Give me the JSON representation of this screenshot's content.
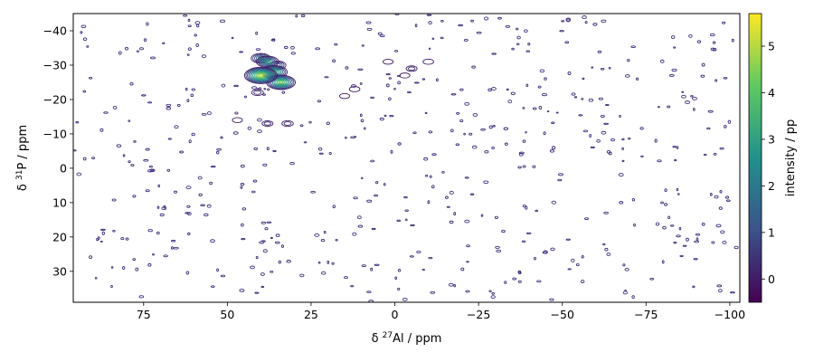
{
  "chart_data": {
    "type": "heatmap",
    "subtype": "2D NMR contour plot",
    "title": "",
    "xlabel": {
      "prefix": "δ ",
      "sup": "27",
      "suffix": "Al / ppm"
    },
    "ylabel": {
      "prefix": "δ ",
      "sup": "31",
      "suffix": "P / ppm"
    },
    "colorbar_label": "intensity / pp",
    "colormap": "viridis",
    "colormap_stops": [
      "#440154",
      "#3b528b",
      "#21918c",
      "#5ec962",
      "#fde725"
    ],
    "contour_color_low": "#3f2a7a",
    "xlim": [
      96,
      -103
    ],
    "ylim": [
      39,
      -45
    ],
    "xaxis_reversed": true,
    "yaxis_reversed": true,
    "xticks": [
      75,
      50,
      25,
      0,
      -25,
      -50,
      -75,
      -100
    ],
    "yticks": [
      -40,
      -30,
      -20,
      -10,
      0,
      10,
      20,
      30
    ],
    "colorbar_range": [
      -0.5,
      5.7
    ],
    "colorbar_ticks": [
      0,
      1,
      2,
      3,
      4,
      5
    ],
    "grid": false,
    "peaks": [
      {
        "x": 40,
        "y": -27,
        "intensity": 5.4
      },
      {
        "x": 36,
        "y": -28,
        "intensity": 4.0
      },
      {
        "x": 34,
        "y": -25,
        "intensity": 4.6
      },
      {
        "x": 38,
        "y": -31,
        "intensity": 3.2
      },
      {
        "x": 40,
        "y": -32,
        "intensity": 2.6
      },
      {
        "x": 35,
        "y": -30,
        "intensity": 2.0
      },
      {
        "x": 41,
        "y": -22,
        "intensity": 1.0
      },
      {
        "x": 38,
        "y": -13,
        "intensity": 0.8
      },
      {
        "x": 32,
        "y": -13,
        "intensity": 0.9
      },
      {
        "x": 47,
        "y": -14,
        "intensity": 0.6
      },
      {
        "x": 12,
        "y": -23,
        "intensity": 0.7
      },
      {
        "x": 15,
        "y": -21,
        "intensity": 0.6
      },
      {
        "x": -5,
        "y": -29,
        "intensity": 0.8
      },
      {
        "x": -10,
        "y": -31,
        "intensity": 0.7
      },
      {
        "x": 2,
        "y": -31,
        "intensity": 0.6
      },
      {
        "x": -3,
        "y": -27,
        "intensity": 0.6
      }
    ]
  }
}
